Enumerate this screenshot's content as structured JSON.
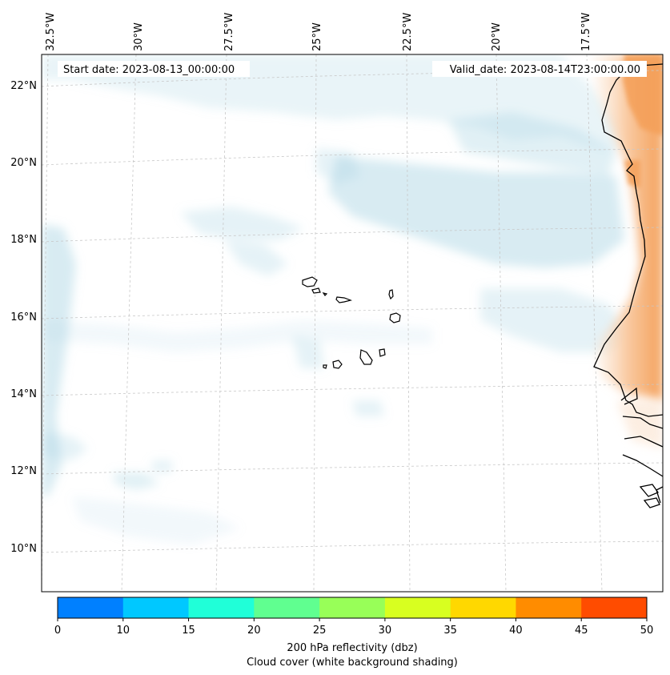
{
  "map": {
    "start_date": "Start date: 2023-08-13_00:00:00",
    "valid_date": "Valid_date: 2023-08-14T23:00:00.00",
    "lon_ticks": [
      "32.5°W",
      "30°W",
      "27.5°W",
      "25°W",
      "22.5°W",
      "20°W",
      "17.5°W"
    ],
    "lat_ticks": [
      "22°N",
      "20°N",
      "18°N",
      "16°N",
      "14°N",
      "12°N",
      "10°N"
    ],
    "region": "Cape Verde Islands and West African coast",
    "colors": {
      "cloud_shading": "#a8d4e4",
      "reflectivity_high": "#f4a460",
      "coastline": "#000000",
      "gridline": "#c8c8c8"
    }
  },
  "colorbar": {
    "tick_labels": [
      "0",
      "10",
      "15",
      "20",
      "25",
      "30",
      "35",
      "40",
      "45",
      "50"
    ],
    "colors": [
      "#0080ff",
      "#00c8ff",
      "#20ffd8",
      "#60ff90",
      "#98ff58",
      "#d8ff20",
      "#ffd800",
      "#ff8c00",
      "#ff4c00"
    ],
    "label_line1": "200 hPa reflectivity (dbz)",
    "label_line2": "Cloud cover (white background shading)"
  }
}
